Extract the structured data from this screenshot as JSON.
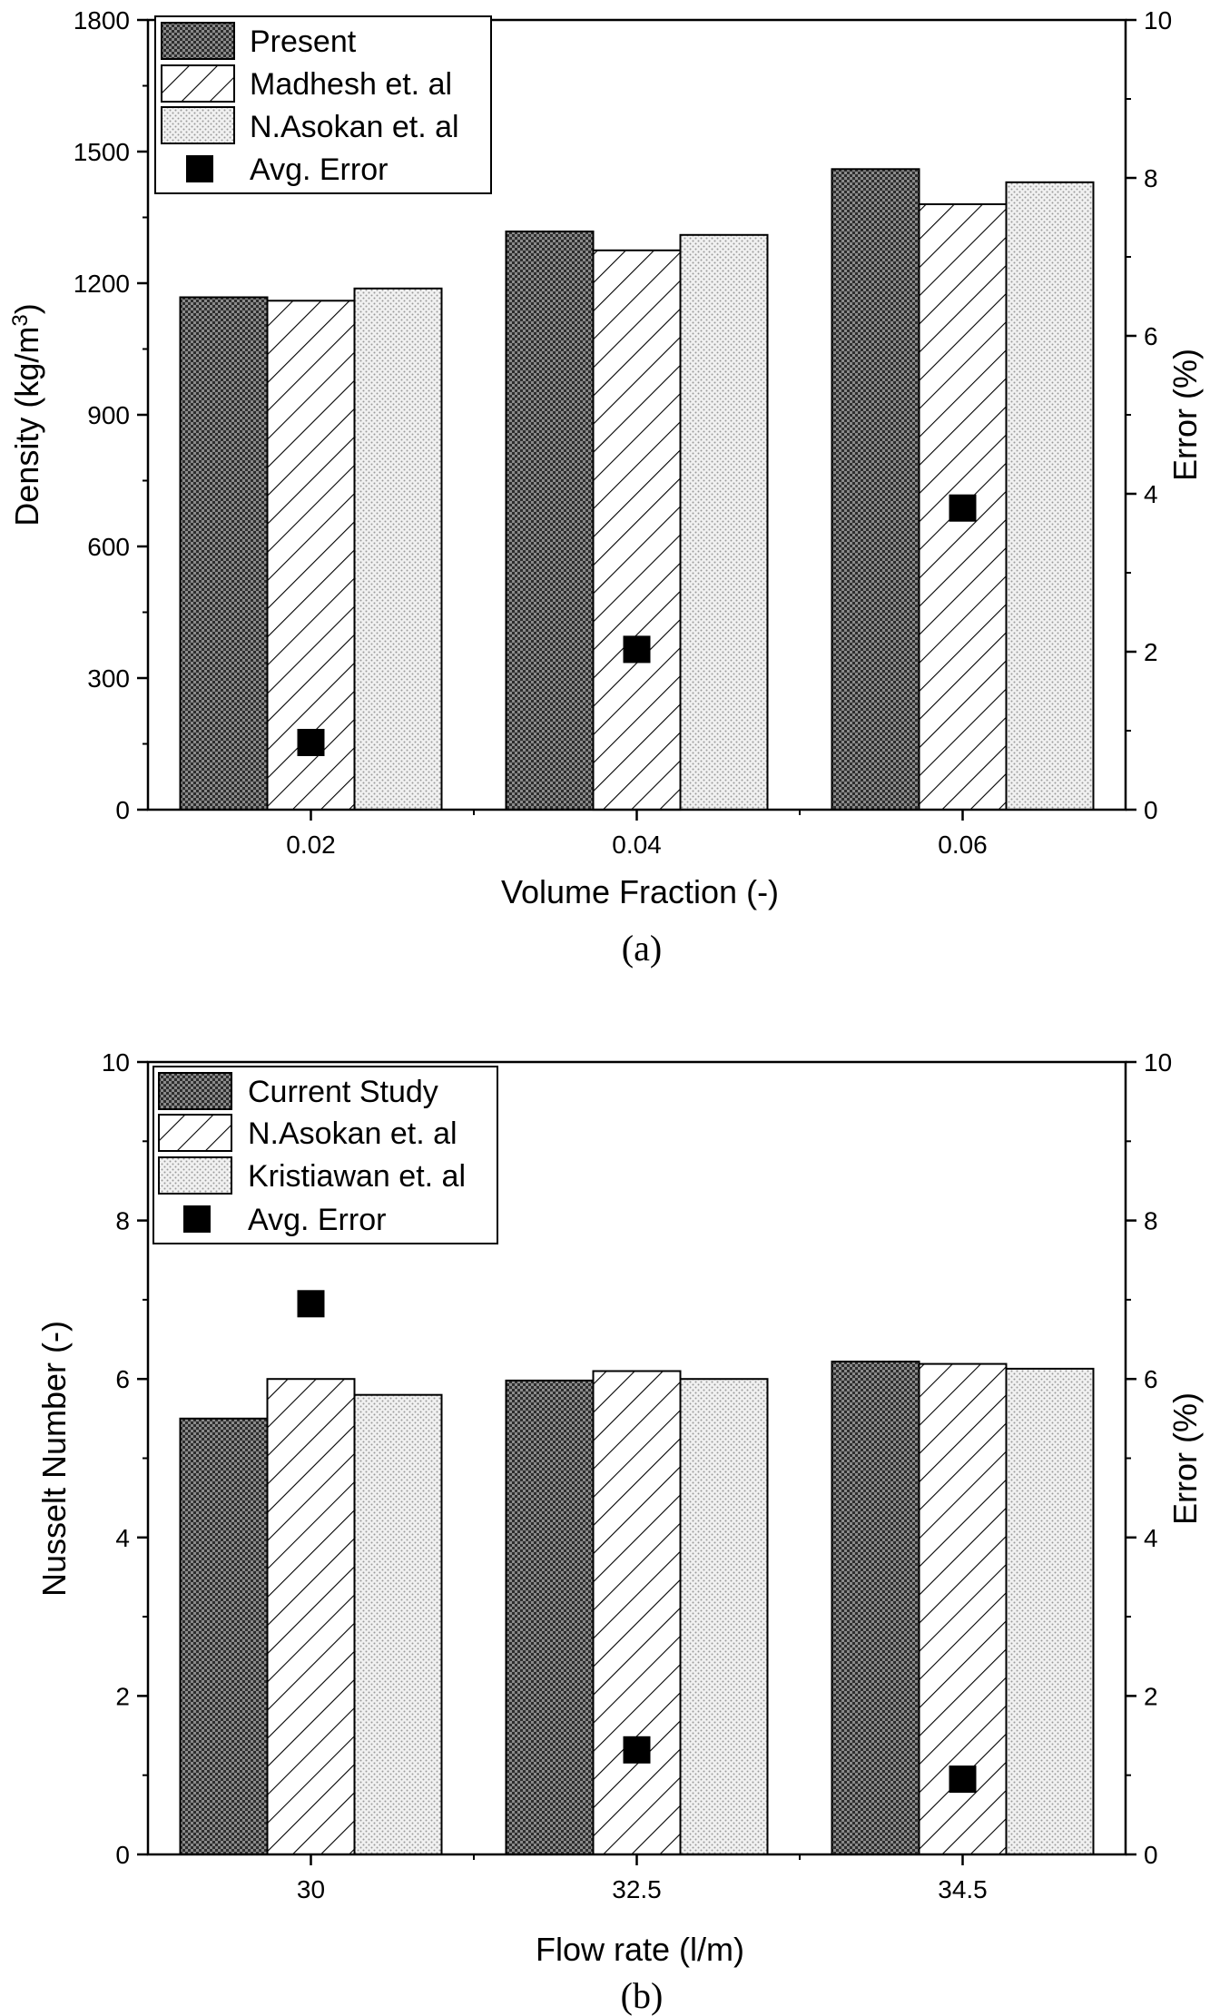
{
  "chart_data": [
    {
      "type": "bar",
      "caption": "(a)",
      "xlabel": "Volume Fraction (-)",
      "ylabel": "Density (kg/m",
      "ylabel_sup": "3",
      "ylabel_end": ")",
      "y2label": "Error (%)",
      "categories": [
        "0.02",
        "0.04",
        "0.06"
      ],
      "ylim": [
        0,
        1800
      ],
      "yticks": [
        "0",
        "300",
        "600",
        "900",
        "1200",
        "1500",
        "1800"
      ],
      "y2lim": [
        0,
        10
      ],
      "y2ticks": [
        "0",
        "2",
        "4",
        "6",
        "8",
        "10"
      ],
      "series": [
        {
          "name": "Present",
          "pattern": "cross",
          "values": [
            1168,
            1318,
            1460
          ]
        },
        {
          "name": "Madhesh et. al",
          "pattern": "hatch",
          "values": [
            1160,
            1275,
            1380
          ]
        },
        {
          "name": "N.Asokan et. al",
          "pattern": "dots",
          "values": [
            1188,
            1310,
            1430
          ]
        }
      ],
      "error": {
        "name": "Avg. Error",
        "axis": "right",
        "values": [
          0.85,
          2.03,
          3.82
        ]
      },
      "legend_position": "top-left"
    },
    {
      "type": "bar",
      "caption": "(b)",
      "xlabel": "Flow rate (l/m)",
      "ylabel": "Nusselt Number (-)",
      "y2label": "Error (%)",
      "categories": [
        "30",
        "32.5",
        "34.5"
      ],
      "ylim": [
        0,
        10
      ],
      "yticks": [
        "0",
        "2",
        "4",
        "6",
        "8",
        "10"
      ],
      "y2lim": [
        0,
        10
      ],
      "y2ticks": [
        "0",
        "2",
        "4",
        "6",
        "8",
        "10"
      ],
      "series": [
        {
          "name": "Current Study",
          "pattern": "cross",
          "values": [
            5.5,
            5.98,
            6.22
          ]
        },
        {
          "name": "N.Asokan et. al",
          "pattern": "hatch",
          "values": [
            6.0,
            6.1,
            6.19
          ]
        },
        {
          "name": "Kristiawan et. al",
          "pattern": "dots",
          "values": [
            5.8,
            6.0,
            6.13
          ]
        }
      ],
      "error": {
        "name": "Avg. Error",
        "axis": "right",
        "values": [
          6.95,
          1.32,
          0.95
        ]
      },
      "legend_position": "top-left"
    }
  ]
}
